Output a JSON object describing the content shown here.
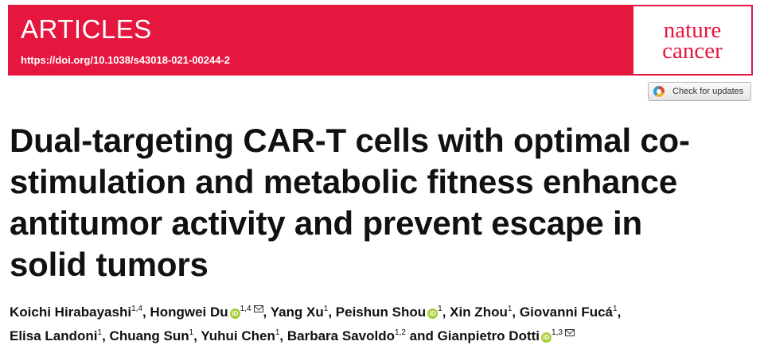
{
  "header": {
    "section": "ARTICLES",
    "doi": "https://doi.org/10.1038/s43018-021-00244-2",
    "journal_line1": "nature",
    "journal_line2": "cancer",
    "accent_color": "#e5173f"
  },
  "updates_button": {
    "label": "Check for updates",
    "icon": "crossmark-icon"
  },
  "title": "Dual-targeting CAR-T cells with optimal co-stimulation and metabolic fitness enhance antitumor activity and prevent escape in solid tumors",
  "authors": [
    {
      "name": "Koichi Hirabayashi",
      "aff": "1,4",
      "orcid": false,
      "email": false
    },
    {
      "name": "Hongwei Du",
      "aff": "1,4",
      "orcid": true,
      "email": true
    },
    {
      "name": "Yang Xu",
      "aff": "1",
      "orcid": false,
      "email": false
    },
    {
      "name": "Peishun Shou",
      "aff": "1",
      "orcid": true,
      "email": false
    },
    {
      "name": "Xin Zhou",
      "aff": "1",
      "orcid": false,
      "email": false
    },
    {
      "name": "Giovanni Fucá",
      "aff": "1",
      "orcid": false,
      "email": false
    },
    {
      "name": "Elisa Landoni",
      "aff": "1",
      "orcid": false,
      "email": false
    },
    {
      "name": "Chuang Sun",
      "aff": "1",
      "orcid": false,
      "email": false
    },
    {
      "name": "Yuhui Chen",
      "aff": "1",
      "orcid": false,
      "email": false
    },
    {
      "name": "Barbara Savoldo",
      "aff": "1,2",
      "orcid": false,
      "email": false
    },
    {
      "name": "Gianpietro Dotti",
      "aff": "1,3",
      "orcid": true,
      "email": true
    }
  ],
  "author_separator": ", ",
  "author_last_separator": " and "
}
